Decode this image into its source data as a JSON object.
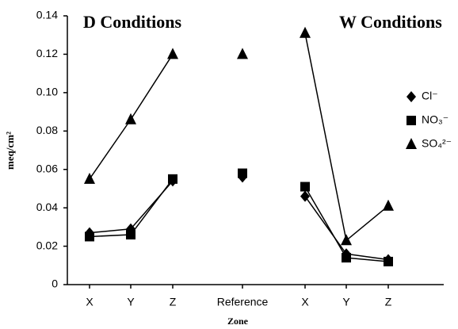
{
  "chart_data": {
    "type": "line",
    "annotations": [
      "D Conditions",
      "W Conditions"
    ],
    "x_label": "Zone",
    "y_label": "meq/cm²",
    "categories": [
      "X",
      "Y",
      "Z",
      "Reference",
      "X",
      "Y",
      "Z"
    ],
    "series": [
      {
        "name": "Cl⁻",
        "color": "#000000",
        "marker": "diamond",
        "values": [
          0.027,
          0.029,
          0.054,
          0.056,
          0.046,
          0.016,
          0.013
        ]
      },
      {
        "name": "NO₃⁻",
        "color": "#000000",
        "marker": "square",
        "values": [
          0.025,
          0.026,
          0.055,
          0.058,
          0.051,
          0.014,
          0.012
        ]
      },
      {
        "name": "SO₄²⁻",
        "color": "#000000",
        "marker": "triangle",
        "values": [
          0.055,
          0.086,
          0.12,
          0.12,
          0.131,
          0.023,
          0.041
        ]
      }
    ],
    "ylim": [
      0,
      0.14
    ],
    "yticks": [
      0,
      0.02,
      0.04,
      0.06,
      0.08,
      {
        "value": 0.1,
        "label": "0.10"
      },
      0.12,
      0.14
    ],
    "legend": "right"
  }
}
